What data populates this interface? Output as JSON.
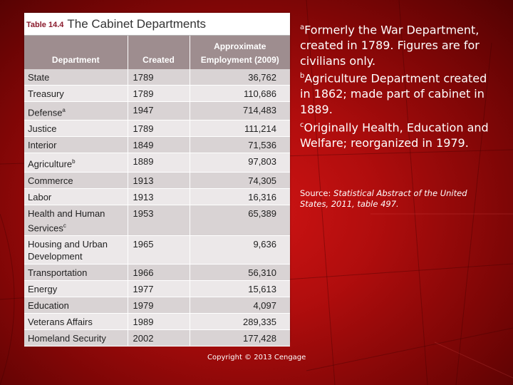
{
  "table": {
    "number": "Table 14.4",
    "title": "The Cabinet Departments",
    "headers": {
      "department": "Department",
      "created": "Created",
      "employment": "Approximate Employment (2009)"
    },
    "rows": [
      {
        "department": "State",
        "sup": "",
        "created": "1789",
        "employment": "36,762"
      },
      {
        "department": "Treasury",
        "sup": "",
        "created": "1789",
        "employment": "110,686"
      },
      {
        "department": "Defense",
        "sup": "a",
        "created": "1947",
        "employment": "714,483"
      },
      {
        "department": "Justice",
        "sup": "",
        "created": "1789",
        "employment": "111,214"
      },
      {
        "department": "Interior",
        "sup": "",
        "created": "1849",
        "employment": "71,536"
      },
      {
        "department": "Agriculture",
        "sup": "b",
        "created": "1889",
        "employment": "97,803"
      },
      {
        "department": "Commerce",
        "sup": "",
        "created": "1913",
        "employment": "74,305"
      },
      {
        "department": "Labor",
        "sup": "",
        "created": "1913",
        "employment": "16,316"
      },
      {
        "department": "Health and Human Services",
        "sup": "c",
        "created": "1953",
        "employment": "65,389"
      },
      {
        "department": "Housing and Urban Development",
        "sup": "",
        "created": "1965",
        "employment": "9,636"
      },
      {
        "department": "Transportation",
        "sup": "",
        "created": "1966",
        "employment": "56,310"
      },
      {
        "department": "Energy",
        "sup": "",
        "created": "1977",
        "employment": "15,613"
      },
      {
        "department": "Education",
        "sup": "",
        "created": "1979",
        "employment": "4,097"
      },
      {
        "department": "Veterans Affairs",
        "sup": "",
        "created": "1989",
        "employment": "289,335"
      },
      {
        "department": "Homeland Security",
        "sup": "",
        "created": "2002",
        "employment": "177,428"
      }
    ]
  },
  "footnotes": [
    {
      "marker": "a",
      "text": "Formerly the War Department, created in 1789. Figures are for civilians only."
    },
    {
      "marker": "b",
      "text": "Agriculture Department created in 1862; made part of cabinet in 1889."
    },
    {
      "marker": "c",
      "text": "Originally Health, Education and Welfare; reorganized in 1979."
    }
  ],
  "source": {
    "label": "Source: ",
    "citation": "Statistical Abstract of the United States, 2011, table 497."
  },
  "copyright": "Copyright © 2013 Cengage"
}
